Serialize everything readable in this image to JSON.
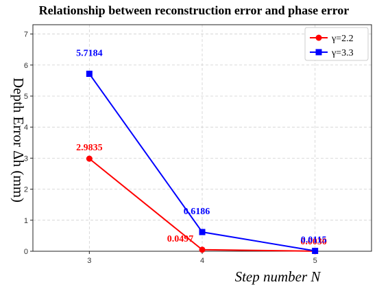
{
  "chart_data": {
    "type": "line",
    "title": "Relationship between reconstruction error and phase error",
    "xlabel": "Step number N",
    "ylabel": "Depth Error Δh (mm)",
    "x": [
      3,
      4,
      5
    ],
    "xlim": [
      2.5,
      5.5
    ],
    "ylim": [
      0,
      7.3
    ],
    "xticks": [
      "3",
      "4",
      "5"
    ],
    "yticks": [
      "0",
      "1",
      "2",
      "3",
      "4",
      "5",
      "6",
      "7"
    ],
    "grid": true,
    "legend_position": "top-right",
    "series": [
      {
        "name": "γ=2.2",
        "color": "#ff0000",
        "marker": "circle",
        "values": [
          2.9835,
          0.0497,
          0.003
        ],
        "labels": [
          "2.9835",
          "0.0497",
          "0.0030"
        ]
      },
      {
        "name": "γ=3.3",
        "color": "#0000ff",
        "marker": "square",
        "values": [
          5.7184,
          0.6186,
          0.0115
        ],
        "labels": [
          "5.7184",
          "0.6186",
          "0.0115"
        ]
      }
    ]
  }
}
